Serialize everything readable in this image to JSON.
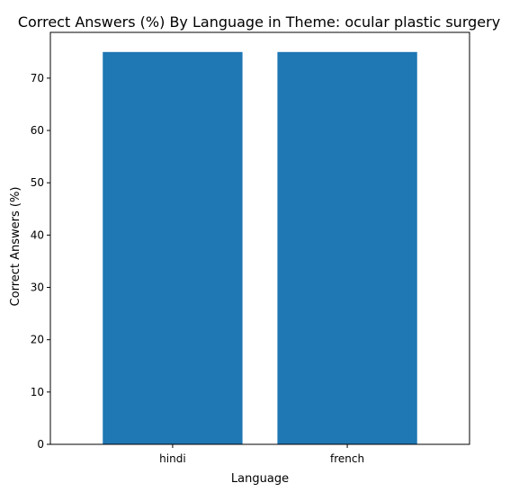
{
  "chart_data": {
    "type": "bar",
    "title": "Correct Answers (%) By Language in Theme: ocular plastic surgery",
    "xlabel": "Language",
    "ylabel": "Correct Answers (%)",
    "categories": [
      "hindi",
      "french"
    ],
    "values": [
      75,
      75
    ],
    "ylim": [
      0,
      78.75
    ],
    "yticks": [
      0,
      10,
      20,
      30,
      40,
      50,
      60,
      70
    ],
    "bar_color": "#1f77b4",
    "grid": false,
    "legend": "none"
  }
}
